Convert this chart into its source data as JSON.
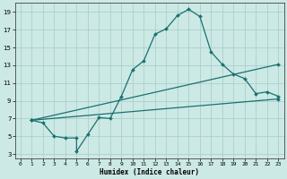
{
  "xlabel": "Humidex (Indice chaleur)",
  "bg_color": "#cce9e5",
  "grid_color": "#aad0cb",
  "line_color": "#1a7070",
  "xlim": [
    -0.5,
    23.5
  ],
  "ylim": [
    2.5,
    20
  ],
  "xticks": [
    0,
    1,
    2,
    3,
    4,
    5,
    6,
    7,
    8,
    9,
    10,
    11,
    12,
    13,
    14,
    15,
    16,
    17,
    18,
    19,
    20,
    21,
    22,
    23
  ],
  "yticks": [
    3,
    5,
    7,
    9,
    11,
    13,
    15,
    17,
    19
  ],
  "curve1_x": [
    1,
    2,
    3,
    4,
    5,
    5,
    6,
    7,
    8,
    9,
    10,
    11,
    12,
    13,
    14,
    15,
    16,
    17,
    18,
    19,
    20,
    21,
    22,
    23
  ],
  "curve1_y": [
    6.8,
    6.5,
    5.0,
    4.8,
    4.8,
    3.3,
    5.2,
    7.1,
    7.0,
    9.5,
    12.5,
    13.5,
    16.5,
    17.1,
    18.6,
    19.3,
    18.5,
    14.5,
    13.1,
    12.0,
    11.5,
    9.8,
    10.0,
    9.5
  ],
  "curve2_x": [
    1,
    23
  ],
  "curve2_y": [
    6.8,
    13.1
  ],
  "curve3_x": [
    1,
    23
  ],
  "curve3_y": [
    6.8,
    9.2
  ],
  "marker_size": 2.0,
  "line_width": 0.9
}
